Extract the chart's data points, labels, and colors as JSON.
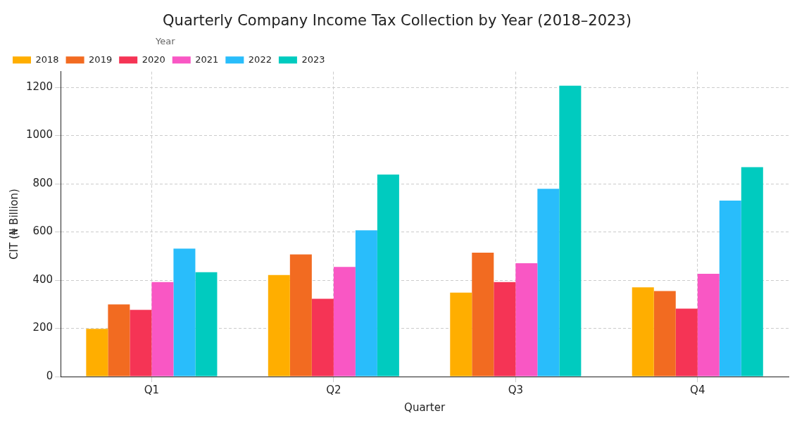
{
  "chart_data": {
    "type": "bar",
    "title": "Quarterly Company Income Tax Collection by Year (2018–2023)",
    "xlabel": "Quarter",
    "ylabel": "CIT (₦ Billion)",
    "legend_title": "Year",
    "categories": [
      "Q1",
      "Q2",
      "Q3",
      "Q4"
    ],
    "series": [
      {
        "name": "2018",
        "color": "#ffae00",
        "values": [
          198,
          421,
          348,
          370
        ]
      },
      {
        "name": "2019",
        "color": "#f26b21",
        "values": [
          299,
          507,
          514,
          355
        ]
      },
      {
        "name": "2020",
        "color": "#f53455",
        "values": [
          277,
          323,
          392,
          282
        ]
      },
      {
        "name": "2021",
        "color": "#f957c4",
        "values": [
          392,
          455,
          470,
          426
        ]
      },
      {
        "name": "2022",
        "color": "#29bdfb",
        "values": [
          531,
          607,
          779,
          730
        ]
      },
      {
        "name": "2023",
        "color": "#00cbbf",
        "values": [
          433,
          838,
          1207,
          869
        ]
      }
    ],
    "ylim": [
      0,
      1265
    ],
    "yticks": [
      0,
      200,
      400,
      600,
      800,
      1000,
      1200
    ],
    "grid": true,
    "legend": "top left"
  }
}
